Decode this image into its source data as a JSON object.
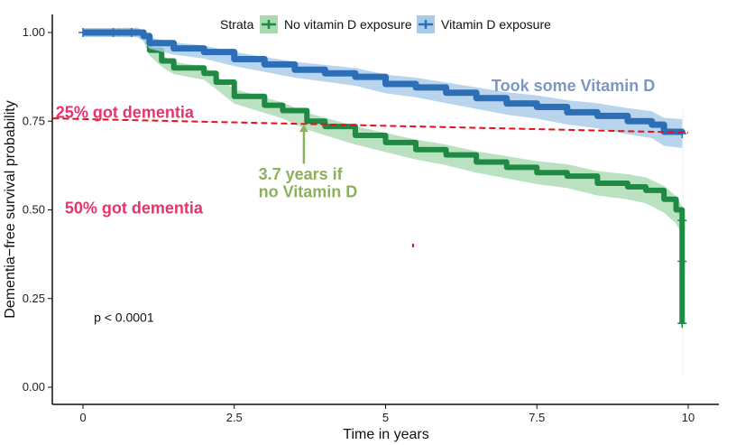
{
  "chart_data": {
    "type": "line",
    "title": "",
    "xlabel": "Time in years",
    "ylabel": "Dementia−free survival probability",
    "xlim": [
      -0.5,
      10.5
    ],
    "ylim": [
      -0.05,
      1.05
    ],
    "xticks": [
      0,
      2.5,
      5,
      7.5,
      10
    ],
    "xtick_labels": [
      "0",
      "2.5",
      "5",
      "7.5",
      "10"
    ],
    "yticks": [
      0,
      0.25,
      0.5,
      0.75,
      1
    ],
    "ytick_labels": [
      "0.00",
      "0.25",
      "0.50",
      "0.75",
      "1.00"
    ],
    "grid": false,
    "legend": {
      "title": "Strata",
      "placement": "top"
    },
    "series": [
      {
        "name": "No vitamin D exposure",
        "color": "#1e8a43",
        "band_color": "#a9dbb0",
        "x": [
          0,
          0.9,
          1.0,
          1.1,
          1.3,
          1.5,
          2.0,
          2.2,
          2.5,
          3.0,
          3.3,
          3.7,
          4.0,
          4.5,
          5.0,
          5.5,
          6.0,
          6.5,
          7.0,
          7.5,
          8.0,
          8.5,
          9.0,
          9.3,
          9.6,
          9.8,
          9.9,
          9.9
        ],
        "y": [
          1,
          1,
          0.99,
          0.95,
          0.92,
          0.9,
          0.885,
          0.86,
          0.82,
          0.795,
          0.78,
          0.75,
          0.735,
          0.71,
          0.69,
          0.67,
          0.655,
          0.635,
          0.62,
          0.605,
          0.595,
          0.575,
          0.565,
          0.555,
          0.53,
          0.5,
          0.47,
          0.18
        ],
        "censor_marks": [
          [
            0.5,
            1
          ],
          [
            0.6,
            1
          ],
          [
            0.7,
            1
          ],
          [
            0.8,
            1
          ],
          [
            9.9,
            0.47
          ],
          [
            9.9,
            0.355
          ],
          [
            9.9,
            0.18
          ]
        ]
      },
      {
        "name": "Vitamin D exposure",
        "color": "#2c6fb7",
        "band_color": "#a8cbe9",
        "x": [
          0,
          0.9,
          1.0,
          1.1,
          1.5,
          2.0,
          2.5,
          3.0,
          3.5,
          4.0,
          4.5,
          5.0,
          5.5,
          6.0,
          6.5,
          7.0,
          7.5,
          8.0,
          8.5,
          9.0,
          9.4,
          9.6,
          9.9
        ],
        "y": [
          1,
          1,
          0.99,
          0.97,
          0.955,
          0.945,
          0.925,
          0.91,
          0.895,
          0.885,
          0.875,
          0.855,
          0.845,
          0.83,
          0.815,
          0.8,
          0.79,
          0.775,
          0.765,
          0.75,
          0.74,
          0.72,
          0.715
        ],
        "censor_marks": [
          [
            0,
            1
          ],
          [
            0.5,
            1
          ],
          [
            0.8,
            1
          ],
          [
            9.9,
            0.715
          ]
        ]
      }
    ],
    "reference_line": {
      "color": "#e8101c",
      "x": [
        -0.5,
        10
      ],
      "y": [
        0.758,
        0.718
      ]
    },
    "annotations": [
      {
        "text": "25% got dementia",
        "color": "#e8336a",
        "x": -0.45,
        "y": 0.76
      },
      {
        "text": "50% got dementia",
        "color": "#e8336a",
        "x": -0.3,
        "y": 0.49
      },
      {
        "text": "Took some Vitamin D",
        "color": "#7b97c2",
        "x": 6.75,
        "y": 0.835
      },
      {
        "text": "3.7 years if",
        "color": "#8db05a",
        "x": 2.9,
        "y": 0.585
      },
      {
        "text": "no Vitamin D",
        "color": "#8db05a",
        "x": 2.9,
        "y": 0.535
      },
      {
        "text": "p < 0.0001",
        "color": "#111111",
        "x": 0.18,
        "y": 0.185
      }
    ],
    "arrow": {
      "color": "#8db05a",
      "from": [
        3.65,
        0.63
      ],
      "to": [
        3.65,
        0.74
      ]
    }
  }
}
